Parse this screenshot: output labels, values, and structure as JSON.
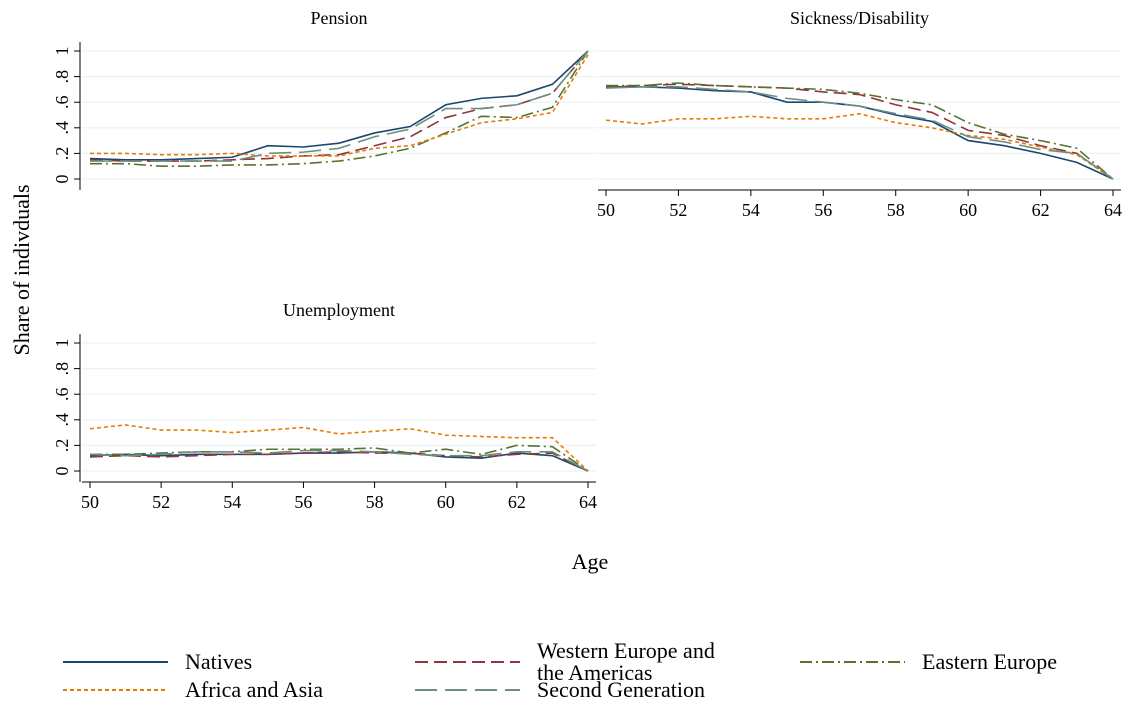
{
  "y_label": "Share of indivduals",
  "x_label": "Age",
  "chart_data": [
    {
      "type": "line",
      "title": "Pension",
      "x": [
        50,
        51,
        52,
        53,
        54,
        55,
        56,
        57,
        58,
        59,
        60,
        61,
        62,
        63,
        64
      ],
      "xlim": [
        50,
        64
      ],
      "xticks": [
        50,
        52,
        54,
        56,
        58,
        60,
        62,
        64
      ],
      "ylim": [
        0,
        1
      ],
      "yticks": [
        0,
        {
          "value": 0.2,
          "label": ".2"
        },
        {
          "value": 0.4,
          "label": ".4"
        },
        {
          "value": 0.6,
          "label": ".6"
        },
        {
          "value": 0.8,
          "label": ".8"
        },
        1
      ],
      "grid": true,
      "series": [
        {
          "name": "Natives",
          "color": "#1a476f",
          "values": [
            0.16,
            0.15,
            0.15,
            0.16,
            0.17,
            0.26,
            0.25,
            0.28,
            0.36,
            0.41,
            0.58,
            0.63,
            0.65,
            0.74,
            1.0
          ]
        },
        {
          "name": "Western Europe and the Americas",
          "color": "#90353b",
          "values": [
            0.15,
            0.14,
            0.14,
            0.14,
            0.15,
            0.16,
            0.18,
            0.19,
            0.26,
            0.33,
            0.48,
            0.55,
            0.58,
            0.67,
            1.0
          ]
        },
        {
          "name": "Eastern Europe",
          "color": "#55752f",
          "values": [
            0.12,
            0.12,
            0.1,
            0.1,
            0.11,
            0.11,
            0.12,
            0.14,
            0.18,
            0.24,
            0.36,
            0.49,
            0.48,
            0.56,
            1.0
          ]
        },
        {
          "name": "Africa and Asia",
          "color": "#e37e00",
          "values": [
            0.2,
            0.2,
            0.19,
            0.19,
            0.2,
            0.18,
            0.18,
            0.18,
            0.24,
            0.26,
            0.35,
            0.44,
            0.47,
            0.52,
            0.97
          ]
        },
        {
          "name": "Second Generation",
          "color": "#6e8e84",
          "values": [
            0.14,
            0.14,
            0.14,
            0.14,
            0.14,
            0.2,
            0.21,
            0.24,
            0.33,
            0.39,
            0.55,
            0.55,
            0.58,
            0.67,
            1.0
          ]
        }
      ]
    },
    {
      "type": "line",
      "title": "Sickness/Disability",
      "x": [
        50,
        51,
        52,
        53,
        54,
        55,
        56,
        57,
        58,
        59,
        60,
        61,
        62,
        63,
        64
      ],
      "xlim": [
        50,
        64
      ],
      "xticks": [
        50,
        52,
        54,
        56,
        58,
        60,
        62,
        64
      ],
      "ylim": [
        0,
        1
      ],
      "yticks": [
        0,
        {
          "value": 0.2,
          "label": ".2"
        },
        {
          "value": 0.4,
          "label": ".4"
        },
        {
          "value": 0.6,
          "label": ".6"
        },
        {
          "value": 0.8,
          "label": ".8"
        },
        1
      ],
      "grid": true,
      "series": [
        {
          "name": "Natives",
          "color": "#1a476f",
          "values": [
            0.72,
            0.72,
            0.71,
            0.69,
            0.68,
            0.6,
            0.6,
            0.57,
            0.5,
            0.45,
            0.3,
            0.26,
            0.2,
            0.13,
            0.0
          ]
        },
        {
          "name": "Western Europe and the Americas",
          "color": "#90353b",
          "values": [
            0.72,
            0.73,
            0.74,
            0.73,
            0.72,
            0.71,
            0.68,
            0.66,
            0.58,
            0.52,
            0.38,
            0.34,
            0.26,
            0.2,
            0.0
          ]
        },
        {
          "name": "Eastern Europe",
          "color": "#55752f",
          "values": [
            0.73,
            0.73,
            0.75,
            0.73,
            0.72,
            0.71,
            0.7,
            0.67,
            0.62,
            0.58,
            0.44,
            0.35,
            0.3,
            0.24,
            0.0
          ]
        },
        {
          "name": "Africa and Asia",
          "color": "#e37e00",
          "values": [
            0.46,
            0.43,
            0.47,
            0.47,
            0.49,
            0.47,
            0.47,
            0.51,
            0.44,
            0.4,
            0.34,
            0.31,
            0.25,
            0.19,
            0.0
          ]
        },
        {
          "name": "Second Generation",
          "color": "#6e8e84",
          "values": [
            0.71,
            0.72,
            0.72,
            0.7,
            0.68,
            0.63,
            0.6,
            0.57,
            0.51,
            0.46,
            0.33,
            0.29,
            0.23,
            0.2,
            0.0
          ]
        }
      ]
    },
    {
      "type": "line",
      "title": "Unemployment",
      "x": [
        50,
        51,
        52,
        53,
        54,
        55,
        56,
        57,
        58,
        59,
        60,
        61,
        62,
        63,
        64
      ],
      "xlim": [
        50,
        64
      ],
      "xticks": [
        50,
        52,
        54,
        56,
        58,
        60,
        62,
        64
      ],
      "ylim": [
        0,
        1
      ],
      "yticks": [
        0,
        {
          "value": 0.2,
          "label": ".2"
        },
        {
          "value": 0.4,
          "label": ".4"
        },
        {
          "value": 0.6,
          "label": ".6"
        },
        {
          "value": 0.8,
          "label": ".8"
        },
        1
      ],
      "grid": true,
      "series": [
        {
          "name": "Natives",
          "color": "#1a476f",
          "values": [
            0.12,
            0.13,
            0.12,
            0.13,
            0.13,
            0.13,
            0.14,
            0.14,
            0.15,
            0.14,
            0.11,
            0.1,
            0.14,
            0.12,
            0.0
          ]
        },
        {
          "name": "Western Europe and the Americas",
          "color": "#90353b",
          "values": [
            0.11,
            0.12,
            0.11,
            0.12,
            0.13,
            0.13,
            0.14,
            0.15,
            0.14,
            0.14,
            0.12,
            0.11,
            0.13,
            0.14,
            0.0
          ]
        },
        {
          "name": "Eastern Europe",
          "color": "#55752f",
          "values": [
            0.13,
            0.13,
            0.14,
            0.15,
            0.15,
            0.17,
            0.17,
            0.17,
            0.18,
            0.14,
            0.17,
            0.13,
            0.2,
            0.19,
            0.0
          ]
        },
        {
          "name": "Africa and Asia",
          "color": "#e37e00",
          "values": [
            0.33,
            0.36,
            0.32,
            0.32,
            0.3,
            0.32,
            0.34,
            0.29,
            0.31,
            0.33,
            0.28,
            0.27,
            0.26,
            0.26,
            0.0
          ]
        },
        {
          "name": "Second Generation",
          "color": "#6e8e84",
          "values": [
            0.13,
            0.12,
            0.13,
            0.15,
            0.15,
            0.14,
            0.16,
            0.16,
            0.15,
            0.13,
            0.12,
            0.12,
            0.15,
            0.15,
            0.0
          ]
        }
      ]
    }
  ]
}
